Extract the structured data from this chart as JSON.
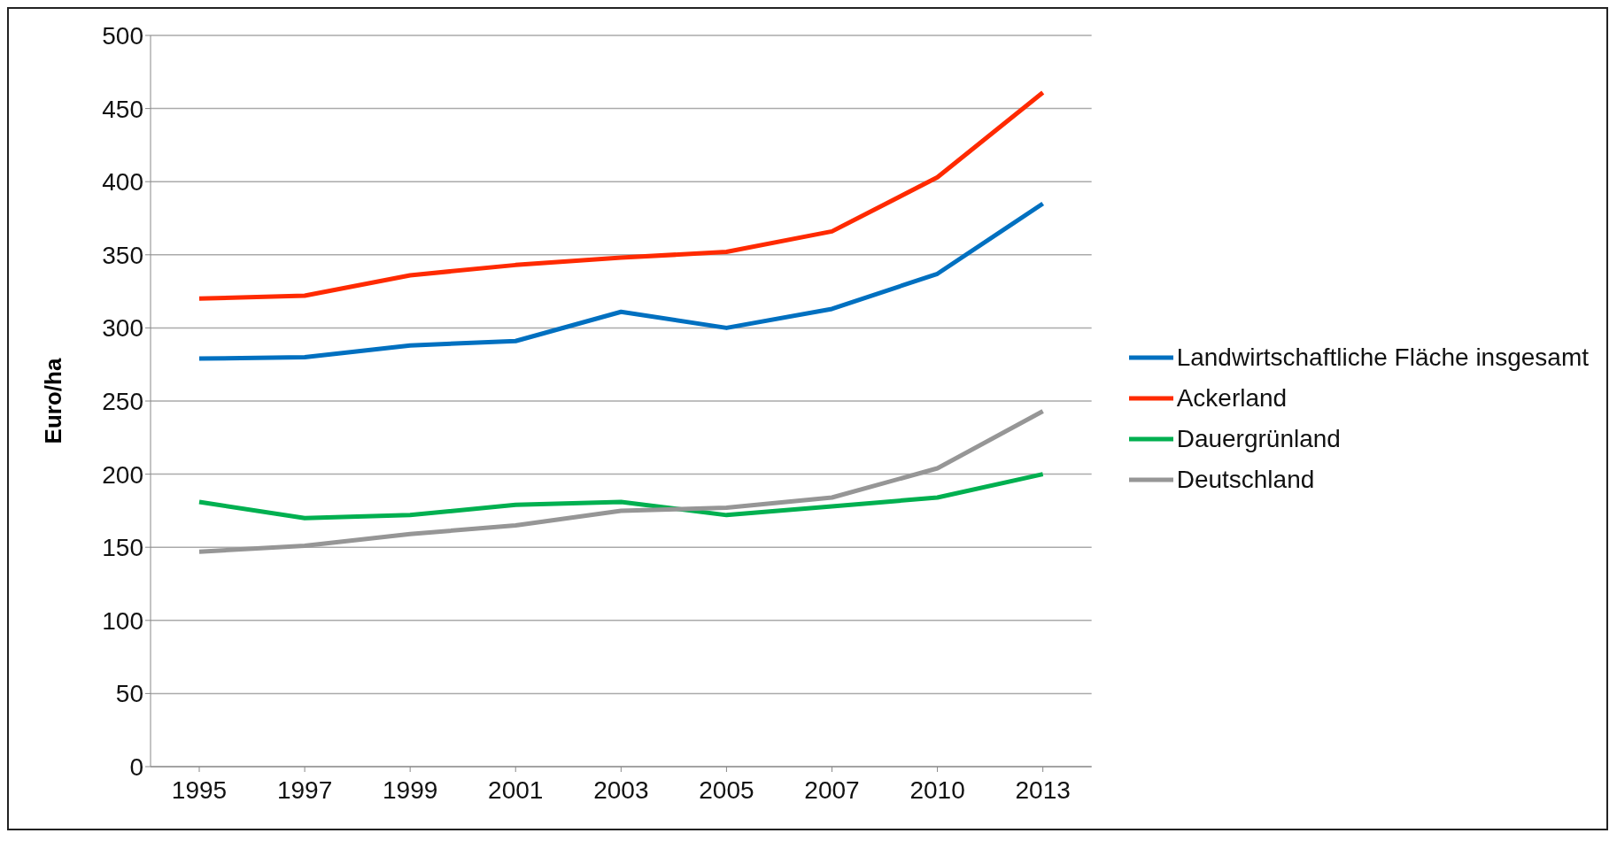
{
  "chart_data": {
    "type": "line",
    "ylabel": "Euro/ha",
    "categories": [
      "1995",
      "1997",
      "1999",
      "2001",
      "2003",
      "2005",
      "2007",
      "2010",
      "2013"
    ],
    "series": [
      {
        "name": "Landwirtschaftliche Fläche insgesamt",
        "color": "#0070c0",
        "values": [
          279,
          280,
          288,
          291,
          311,
          300,
          313,
          337,
          385
        ]
      },
      {
        "name": "Ackerland",
        "color": "#ff2a00",
        "values": [
          320,
          322,
          336,
          343,
          348,
          352,
          366,
          403,
          461
        ]
      },
      {
        "name": "Dauergrünland",
        "color": "#00b050",
        "values": [
          181,
          170,
          172,
          179,
          181,
          172,
          178,
          184,
          200
        ]
      },
      {
        "name": "Deutschland",
        "color": "#969696",
        "values": [
          147,
          151,
          159,
          165,
          175,
          177,
          184,
          204,
          243
        ]
      }
    ],
    "ylim": [
      0,
      500
    ],
    "yticks": [
      0,
      50,
      100,
      150,
      200,
      250,
      300,
      350,
      400,
      450,
      500
    ],
    "grid": "y",
    "legend": "right",
    "marker": "none",
    "line_style": "solid"
  }
}
